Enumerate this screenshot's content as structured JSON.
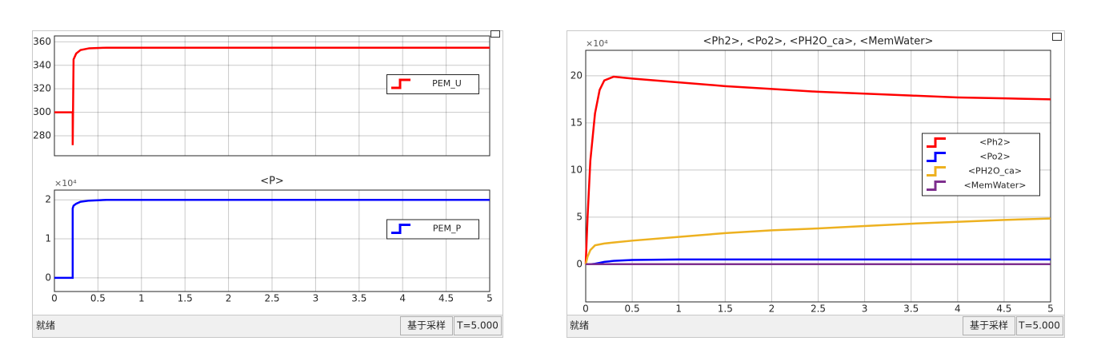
{
  "chart_data": [
    {
      "type": "line",
      "x": [
        0,
        0.21,
        0.21,
        0.22,
        0.25,
        0.3,
        0.4,
        0.6,
        1,
        2,
        3,
        4,
        5
      ],
      "series": [
        {
          "name": "PEM_U",
          "color": "#ff0000",
          "values": [
            300,
            300,
            272,
            345,
            350,
            353,
            354.5,
            355,
            355,
            355,
            355,
            355,
            355
          ]
        }
      ],
      "xlim": [
        0,
        5
      ],
      "xticks": [
        0,
        0.5,
        1,
        1.5,
        2,
        2.5,
        3,
        3.5,
        4,
        4.5,
        5
      ],
      "show_xtick_labels": false,
      "ylim": [
        263,
        365
      ],
      "yticks": [
        280,
        300,
        320,
        340,
        360
      ],
      "grid": true,
      "legend": "east"
    },
    {
      "type": "line",
      "title": "<P>",
      "y_multiplier": "×10⁴",
      "x": [
        0,
        0.21,
        0.21,
        0.22,
        0.25,
        0.3,
        0.4,
        0.6,
        1,
        2,
        3,
        4,
        5
      ],
      "series": [
        {
          "name": "PEM_P",
          "color": "#0000ff",
          "values": [
            0,
            0,
            1.78,
            1.85,
            1.9,
            1.95,
            1.98,
            2,
            2,
            2,
            2,
            2,
            2
          ]
        }
      ],
      "xlim": [
        0,
        5
      ],
      "xticks": [
        0,
        0.5,
        1,
        1.5,
        2,
        2.5,
        3,
        3.5,
        4,
        4.5,
        5
      ],
      "show_xtick_labels": true,
      "ylim": [
        -0.35,
        2.25
      ],
      "yticks": [
        0,
        1,
        2
      ],
      "grid": true,
      "legend": "east"
    },
    {
      "type": "line",
      "title": "<Ph2>, <Po2>, <PH2O_ca>, <MemWater>",
      "y_multiplier": "×10⁴",
      "x": [
        0,
        0.02,
        0.05,
        0.1,
        0.15,
        0.2,
        0.3,
        0.5,
        1,
        1.5,
        2,
        2.5,
        3,
        3.5,
        4,
        4.5,
        5
      ],
      "series": [
        {
          "name": "<Ph2>",
          "color": "#ff0000",
          "values": [
            0,
            5,
            11,
            16,
            18.5,
            19.5,
            19.9,
            19.7,
            19.3,
            18.9,
            18.6,
            18.3,
            18.1,
            17.9,
            17.7,
            17.6,
            17.5
          ]
        },
        {
          "name": "<Po2>",
          "color": "#0000ff",
          "values": [
            0,
            0,
            0,
            0.05,
            0.15,
            0.25,
            0.35,
            0.45,
            0.5,
            0.5,
            0.5,
            0.5,
            0.5,
            0.5,
            0.5,
            0.5,
            0.5
          ]
        },
        {
          "name": "<PH2O_ca>",
          "color": "#edb120",
          "values": [
            0,
            0.8,
            1.5,
            2,
            2.1,
            2.2,
            2.3,
            2.5,
            2.9,
            3.3,
            3.6,
            3.8,
            4.05,
            4.3,
            4.5,
            4.7,
            4.85
          ]
        },
        {
          "name": "<MemWater>",
          "color": "#7e2f8e",
          "values": [
            0,
            0,
            0,
            0,
            0,
            0,
            0,
            0,
            0,
            0,
            0,
            0,
            0,
            0,
            0,
            0,
            0
          ]
        }
      ],
      "xlim": [
        0,
        5
      ],
      "xticks": [
        0,
        0.5,
        1,
        1.5,
        2,
        2.5,
        3,
        3.5,
        4,
        4.5,
        5
      ],
      "show_xtick_labels": true,
      "ylim": [
        -4,
        22.7
      ],
      "yticks": [
        0,
        5,
        10,
        15,
        20
      ],
      "grid": true,
      "legend": "east"
    }
  ],
  "windows": [
    {
      "status": "就绪",
      "mode": "基于采样",
      "time": "T=5.000"
    },
    {
      "status": "就绪",
      "mode": "基于采样",
      "time": "T=5.000"
    }
  ]
}
